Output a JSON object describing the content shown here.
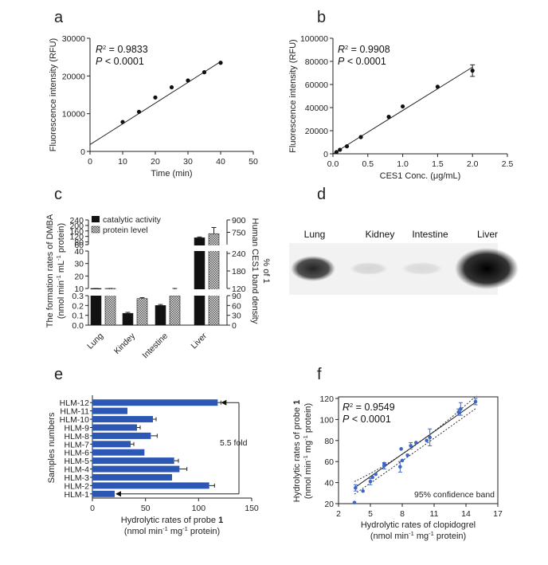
{
  "panel_labels": [
    "a",
    "b",
    "c",
    "d",
    "e",
    "f"
  ],
  "chart_data": [
    {
      "panel": "a",
      "type": "scatter",
      "xlabel": "Time (min)",
      "ylabel": "Fluorescence intensity (RFU)",
      "xlim": [
        0,
        50
      ],
      "ylim": [
        0,
        30000
      ],
      "xticks": [
        "0",
        "10",
        "20",
        "30",
        "40",
        "50"
      ],
      "yticks": [
        "0",
        "10000",
        "20000",
        "30000"
      ],
      "points": [
        [
          10,
          7800
        ],
        [
          15,
          10500
        ],
        [
          20,
          14300
        ],
        [
          25,
          17000
        ],
        [
          30,
          18800
        ],
        [
          35,
          21000
        ],
        [
          40,
          23500
        ]
      ],
      "fit": [
        [
          0,
          1800
        ],
        [
          40,
          23800
        ]
      ],
      "r2_label": "R",
      "r2_sup": "2",
      "r2_value": " = 0.9833",
      "p_label": "P",
      "p_value": " < 0.0001"
    },
    {
      "panel": "b",
      "type": "scatter",
      "xlabel": "CES1 Conc. (μg/mL)",
      "ylabel": "Fluorescence intensity (RFU)",
      "xlim": [
        0,
        2.5
      ],
      "ylim": [
        0,
        100000
      ],
      "xticks": [
        "0.0",
        "0.5",
        "1.0",
        "1.5",
        "2.0",
        "2.5"
      ],
      "yticks": [
        "0",
        "20000",
        "40000",
        "60000",
        "80000",
        "100000"
      ],
      "points": [
        [
          0.05,
          1500
        ],
        [
          0.1,
          3500
        ],
        [
          0.2,
          6500
        ],
        [
          0.4,
          14500
        ],
        [
          0.8,
          32000
        ],
        [
          1.0,
          41000
        ],
        [
          1.5,
          58000
        ],
        [
          2.0,
          72000
        ]
      ],
      "errors": [
        0,
        0,
        0,
        0,
        0,
        0,
        0,
        5000
      ],
      "fit": [
        [
          0,
          0
        ],
        [
          2.0,
          75000
        ]
      ],
      "r2_label": "R",
      "r2_sup": "2",
      "r2_value": " = 0.9908",
      "p_label": "P",
      "p_value": " < 0.0001"
    },
    {
      "panel": "c",
      "type": "bar",
      "categories": [
        "Lung",
        "Kindey",
        "Intestine",
        "Liver"
      ],
      "series": [
        {
          "name": "catalytic activity",
          "values": [
            4.5,
            0.12,
            0.2,
            110
          ],
          "errors": [
            0.4,
            0.01,
            0.01,
            6
          ]
        },
        {
          "name": "protein level",
          "values": [
            4.4,
            0.27,
            0.3,
            140
          ],
          "errors": [
            2.8,
            0.01,
            0.03,
            45
          ]
        }
      ],
      "y_left_label": "The formation rates of DMBA",
      "y_left_units_pre": "(nmol min",
      "y_left_units_mid": " mL",
      "y_left_units_post": " protein)",
      "y_left_units_sup": "-1",
      "y_right_label": "Human CES1 band density",
      "y_right_label2": "% of 1",
      "y_left_ticks_bottom": [
        "0.0",
        "0.1",
        "0.2",
        "0.3"
      ],
      "y_left_ticks_mid": [
        "10",
        "20",
        "30",
        "40"
      ],
      "y_left_ticks_top": [
        "60",
        "80",
        "120",
        "160",
        "200",
        "240"
      ],
      "y_right_ticks_bottom": [
        "0",
        "30",
        "60",
        "90"
      ],
      "y_right_ticks_mid": [
        "120",
        "180",
        "240"
      ],
      "y_right_ticks_top": [
        "750",
        "900"
      ],
      "legend_position": "top"
    },
    {
      "panel": "e",
      "type": "bar",
      "orientation": "horizontal",
      "categories": [
        "HLM-12",
        "HLM-11",
        "HLM-10",
        "HLM-9",
        "HLM-8",
        "HLM-7",
        "HLM-6",
        "HLM-5",
        "HLM-4",
        "HLM-3",
        "HLM-2",
        "HLM-1"
      ],
      "values": [
        118,
        33,
        57,
        42,
        55,
        36,
        49,
        77,
        82,
        75,
        110,
        21
      ],
      "errors": [
        3,
        0,
        3,
        3,
        6,
        3,
        0,
        4,
        7,
        0,
        5,
        0
      ],
      "xlim": [
        0,
        150
      ],
      "xticks": [
        "0",
        "50",
        "100",
        "150"
      ],
      "ylabel": "Samples numbers",
      "xlabel_line1_pre": "Hydrolytic rates of probe ",
      "xlabel_line1_bold": "1",
      "xlabel_line2_pre": "(nmol min",
      "xlabel_line2_mid": " mg",
      "xlabel_line2_post": " protein)",
      "sup": "-1",
      "annotation": "5.5 fold"
    },
    {
      "panel": "f",
      "type": "scatter",
      "xlim": [
        2,
        17
      ],
      "ylim": [
        20,
        120
      ],
      "xticks": [
        "2",
        "5",
        "8",
        "11",
        "14",
        "17"
      ],
      "xtick_values": [
        2,
        5,
        8,
        11,
        14,
        17
      ],
      "xticks_shown": [
        "2",
        "5",
        "8",
        "11",
        "14",
        "17"
      ],
      "yticks": [
        "20",
        "40",
        "60",
        "80",
        "100",
        "120"
      ],
      "points": [
        [
          3.5,
          21
        ],
        [
          3.6,
          35
        ],
        [
          4.3,
          32
        ],
        [
          5.0,
          41
        ],
        [
          5.2,
          45
        ],
        [
          5.5,
          48
        ],
        [
          6.3,
          56
        ],
        [
          6.3,
          58
        ],
        [
          7.8,
          55
        ],
        [
          7.9,
          72
        ],
        [
          8.0,
          61
        ],
        [
          8.5,
          66
        ],
        [
          8.8,
          75
        ],
        [
          9.3,
          78
        ],
        [
          10.3,
          80
        ],
        [
          10.6,
          83
        ],
        [
          13.3,
          107
        ],
        [
          13.5,
          110
        ],
        [
          14.9,
          117
        ]
      ],
      "errors": [
        0,
        3,
        0,
        3,
        0,
        0,
        3,
        0,
        5,
        0,
        0,
        0,
        3,
        0,
        0,
        8,
        3,
        6,
        3
      ],
      "fit": [
        [
          3.5,
          35
        ],
        [
          15,
          117
        ]
      ],
      "r2_label": "R",
      "r2_sup": "2",
      "r2_value": " = 0.9549",
      "p_label": "P",
      "p_value": " < 0.0001",
      "band_label": "95% confidence band",
      "ylabel_line1_pre": "Hydrolytic rates of probe ",
      "ylabel_line1_bold": "1",
      "ylabel_line2_pre": "(nmol min",
      "ylabel_line2_mid": " mg",
      "ylabel_line2_post": " protein)",
      "xlabel_line1": "Hydrolytic rates of clopidogrel",
      "xlabel_line2_pre": "(nmol min",
      "xlabel_line2_mid": " mg",
      "xlabel_line2_post": " protein)",
      "sup": "-1"
    }
  ],
  "blot": {
    "labels": [
      "Lung",
      "Kidney",
      "Intestine",
      "Liver"
    ],
    "intensities": [
      0.85,
      0.12,
      0.1,
      1.0
    ]
  },
  "colors": {
    "bar_blue": "#2d57b4",
    "point_blue": "#3e66c4",
    "black": "#111111"
  }
}
